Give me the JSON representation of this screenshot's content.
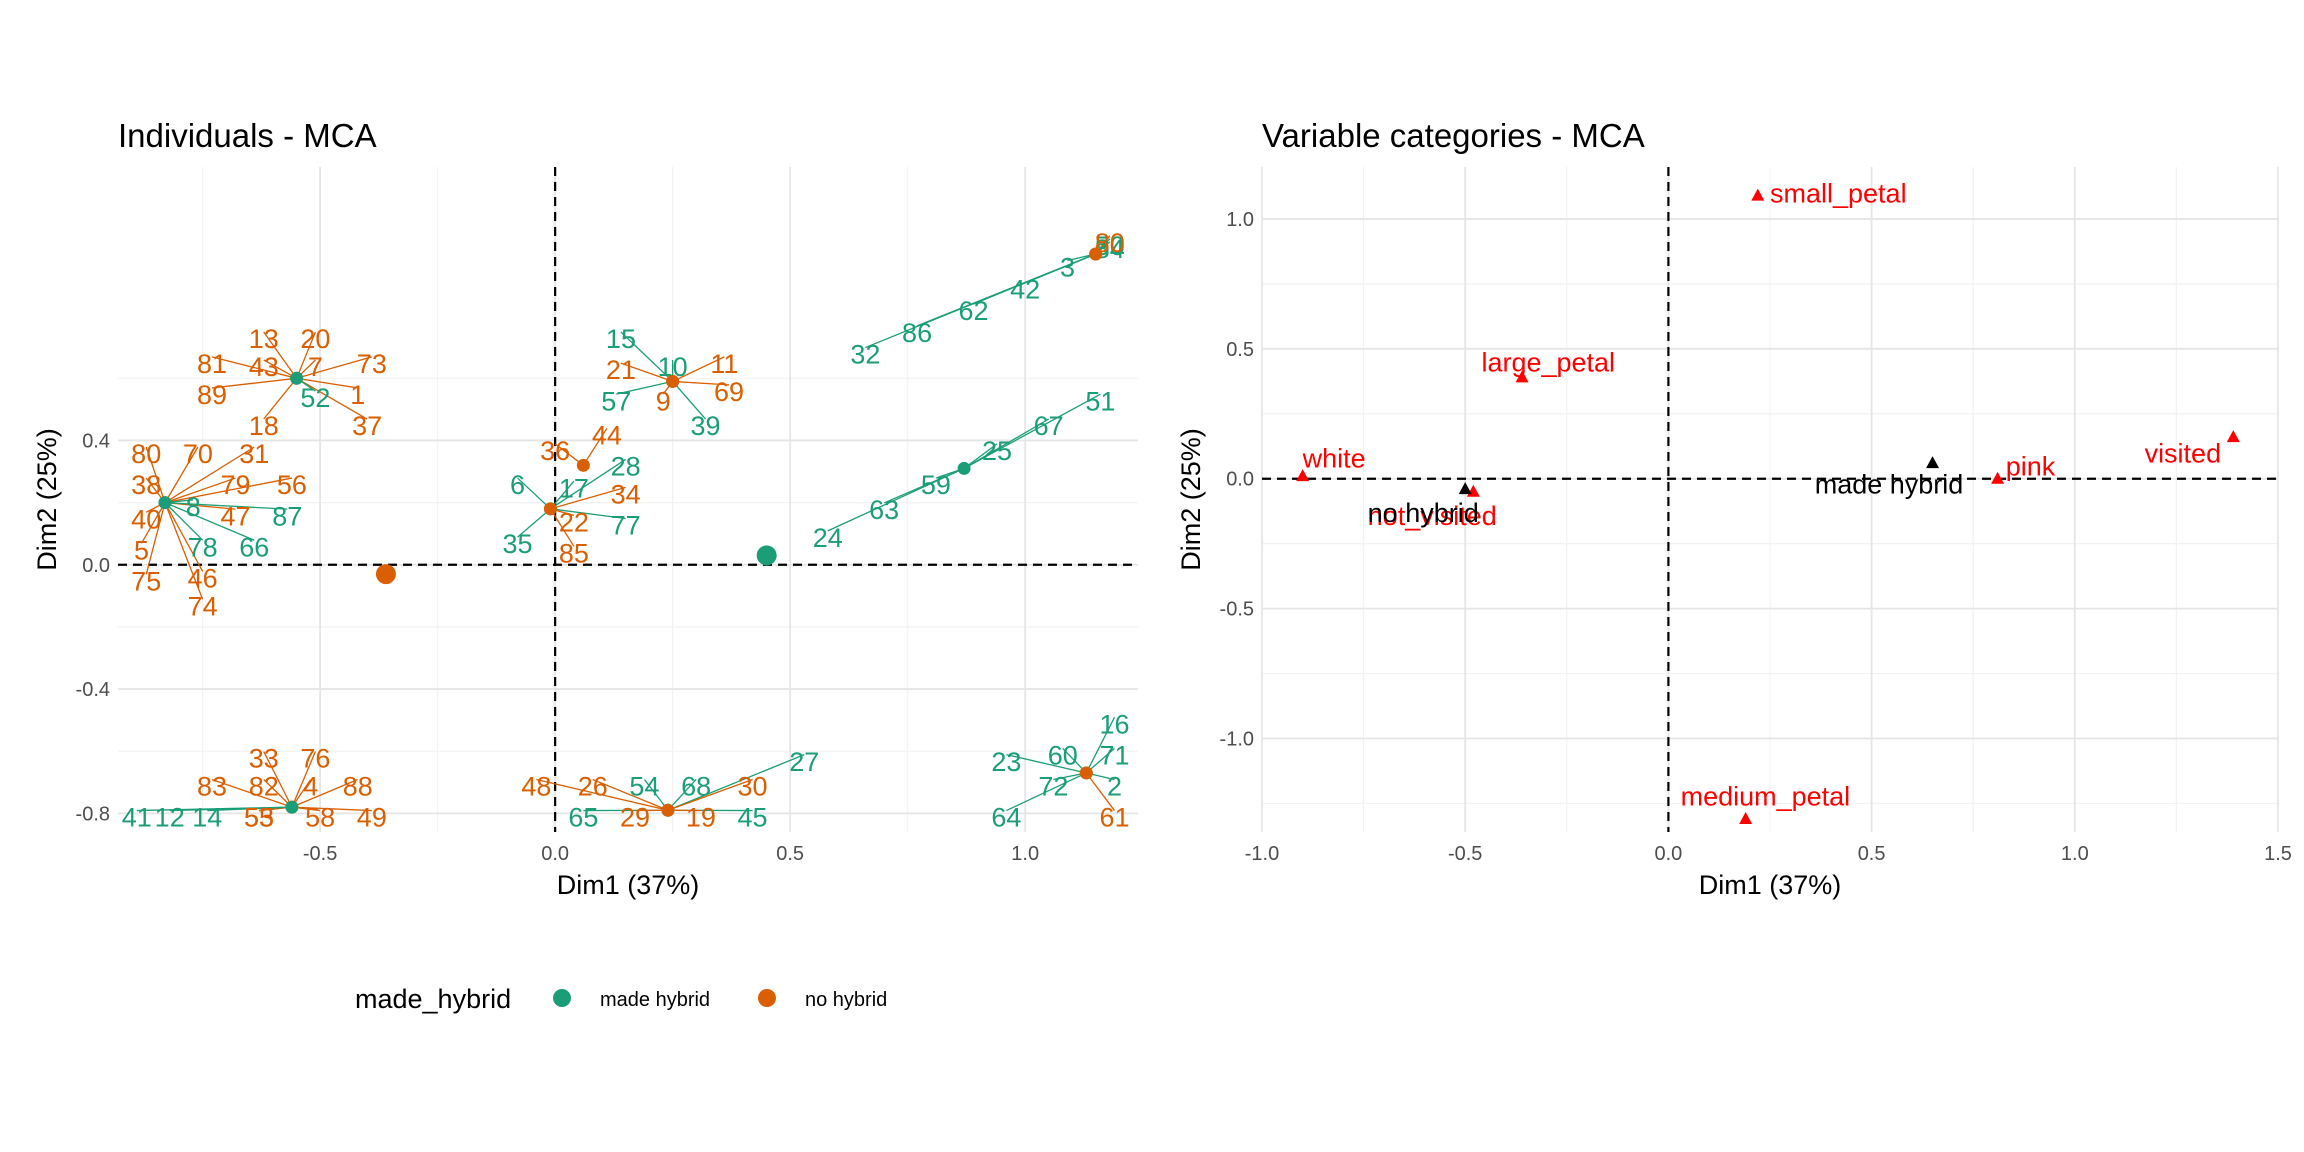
{
  "colors": {
    "made_hybrid": "#1b9e77",
    "no_hybrid": "#d95f02",
    "active": "#ff0000",
    "supp": "#000000",
    "grid_major": "#e5e5e5",
    "grid_minor": "#f2f2f2"
  },
  "chart_data": [
    {
      "type": "scatter",
      "title": "Individuals - MCA",
      "xlabel": "Dim1 (37%)",
      "ylabel": "Dim2 (25%)",
      "xlim": [
        -0.93,
        1.24
      ],
      "ylim": [
        -0.86,
        1.28
      ],
      "xticks": [
        -0.5,
        0.0,
        0.5,
        1.0
      ],
      "xtick_labels": [
        "-0.5",
        "0.0",
        "0.5",
        "1.0"
      ],
      "yticks": [
        -0.8,
        -0.4,
        0.0,
        0.4
      ],
      "ytick_labels": [
        "-0.8",
        "-0.4",
        "0.0",
        "0.4"
      ],
      "legend": {
        "title": "made_hybrid",
        "position": "bottom",
        "entries": [
          "made hybrid",
          "no hybrid"
        ]
      },
      "clusters": [
        {
          "group": "no_hybrid",
          "x": -0.55,
          "y": 0.6,
          "labels": [
            {
              "t": "13",
              "x": -0.62,
              "y": 0.72
            },
            {
              "t": "20",
              "x": -0.51,
              "y": 0.72
            },
            {
              "t": "81",
              "x": -0.73,
              "y": 0.64
            },
            {
              "t": "43",
              "x": -0.62,
              "y": 0.63
            },
            {
              "t": "7",
              "x": -0.51,
              "y": 0.63
            },
            {
              "t": "73",
              "x": -0.39,
              "y": 0.64
            },
            {
              "t": "89",
              "x": -0.73,
              "y": 0.54
            },
            {
              "t": "1",
              "x": -0.42,
              "y": 0.54
            },
            {
              "t": "18",
              "x": -0.62,
              "y": 0.44
            },
            {
              "t": "37",
              "x": -0.4,
              "y": 0.44
            }
          ]
        },
        {
          "group": "made_hybrid",
          "x": -0.55,
          "y": 0.6,
          "labels": [
            {
              "t": "52",
              "x": -0.51,
              "y": 0.53
            }
          ]
        },
        {
          "group": "no_hybrid",
          "x": -0.83,
          "y": 0.2,
          "labels": [
            {
              "t": "80",
              "x": -0.87,
              "y": 0.35
            },
            {
              "t": "70",
              "x": -0.76,
              "y": 0.35
            },
            {
              "t": "31",
              "x": -0.64,
              "y": 0.35
            },
            {
              "t": "38",
              "x": -0.87,
              "y": 0.25
            },
            {
              "t": "79",
              "x": -0.68,
              "y": 0.25
            },
            {
              "t": "56",
              "x": -0.56,
              "y": 0.25
            },
            {
              "t": "40",
              "x": -0.87,
              "y": 0.14
            },
            {
              "t": "47",
              "x": -0.68,
              "y": 0.15
            },
            {
              "t": "5",
              "x": -0.88,
              "y": 0.04
            },
            {
              "t": "75",
              "x": -0.87,
              "y": -0.06
            },
            {
              "t": "46",
              "x": -0.75,
              "y": -0.05
            },
            {
              "t": "74",
              "x": -0.75,
              "y": -0.14
            }
          ]
        },
        {
          "group": "made_hybrid",
          "x": -0.83,
          "y": 0.2,
          "labels": [
            {
              "t": "8",
              "x": -0.77,
              "y": 0.18
            },
            {
              "t": "87",
              "x": -0.57,
              "y": 0.15
            },
            {
              "t": "78",
              "x": -0.75,
              "y": 0.05
            },
            {
              "t": "66",
              "x": -0.64,
              "y": 0.05
            }
          ]
        },
        {
          "group": "made_hybrid",
          "x": 0.25,
          "y": 0.59,
          "labels": [
            {
              "t": "15",
              "x": 0.14,
              "y": 0.72
            },
            {
              "t": "10",
              "x": 0.25,
              "y": 0.63
            },
            {
              "t": "57",
              "x": 0.13,
              "y": 0.52
            },
            {
              "t": "39",
              "x": 0.32,
              "y": 0.44
            }
          ]
        },
        {
          "group": "no_hybrid",
          "x": 0.25,
          "y": 0.59,
          "labels": [
            {
              "t": "21",
              "x": 0.14,
              "y": 0.62
            },
            {
              "t": "11",
              "x": 0.36,
              "y": 0.64
            },
            {
              "t": "9",
              "x": 0.23,
              "y": 0.52
            },
            {
              "t": "69",
              "x": 0.37,
              "y": 0.55
            }
          ]
        },
        {
          "group": "no_hybrid",
          "x": 0.06,
          "y": 0.32,
          "labels": [
            {
              "t": "44",
              "x": 0.11,
              "y": 0.41
            },
            {
              "t": "36",
              "x": 0.0,
              "y": 0.36
            }
          ]
        },
        {
          "group": "made_hybrid",
          "x": -0.01,
          "y": 0.18,
          "labels": [
            {
              "t": "28",
              "x": 0.15,
              "y": 0.31
            },
            {
              "t": "6",
              "x": -0.08,
              "y": 0.25
            },
            {
              "t": "17",
              "x": 0.04,
              "y": 0.24
            },
            {
              "t": "77",
              "x": 0.15,
              "y": 0.12
            },
            {
              "t": "35",
              "x": -0.08,
              "y": 0.06
            }
          ]
        },
        {
          "group": "no_hybrid",
          "x": -0.01,
          "y": 0.18,
          "labels": [
            {
              "t": "34",
              "x": 0.15,
              "y": 0.22
            },
            {
              "t": "22",
              "x": 0.04,
              "y": 0.13
            },
            {
              "t": "85",
              "x": 0.04,
              "y": 0.03
            }
          ]
        },
        {
          "group": "made_hybrid",
          "x": 1.15,
          "y": 1.0,
          "labels": [
            {
              "t": "50",
              "x": 1.18,
              "y": 1.02
            },
            {
              "t": "84",
              "x": 1.18,
              "y": 1.01
            },
            {
              "t": "3",
              "x": 1.09,
              "y": 0.95
            },
            {
              "t": "42",
              "x": 1.0,
              "y": 0.88
            },
            {
              "t": "62",
              "x": 0.89,
              "y": 0.81
            },
            {
              "t": "86",
              "x": 0.77,
              "y": 0.74
            },
            {
              "t": "32",
              "x": 0.66,
              "y": 0.67
            }
          ]
        },
        {
          "group": "no_hybrid",
          "x": 1.15,
          "y": 1.0,
          "labels": [
            {
              "t": "80",
              "x": 1.18,
              "y": 1.03
            }
          ]
        },
        {
          "group": "made_hybrid",
          "x": 0.87,
          "y": 0.31,
          "labels": [
            {
              "t": "51",
              "x": 1.16,
              "y": 0.52
            },
            {
              "t": "67",
              "x": 1.05,
              "y": 0.44
            },
            {
              "t": "25",
              "x": 0.94,
              "y": 0.36
            },
            {
              "t": "59",
              "x": 0.81,
              "y": 0.25
            },
            {
              "t": "63",
              "x": 0.7,
              "y": 0.17
            },
            {
              "t": "24",
              "x": 0.58,
              "y": 0.08
            }
          ]
        },
        {
          "group": "no_hybrid",
          "x": -0.56,
          "y": -0.78,
          "labels": [
            {
              "t": "33",
              "x": -0.62,
              "y": -0.63
            },
            {
              "t": "76",
              "x": -0.51,
              "y": -0.63
            },
            {
              "t": "83",
              "x": -0.73,
              "y": -0.72
            },
            {
              "t": "82",
              "x": -0.62,
              "y": -0.72
            },
            {
              "t": "4",
              "x": -0.52,
              "y": -0.72
            },
            {
              "t": "88",
              "x": -0.42,
              "y": -0.72
            },
            {
              "t": "53",
              "x": -0.63,
              "y": -0.82
            },
            {
              "t": "55",
              "x": -0.63,
              "y": -0.82
            },
            {
              "t": "58",
              "x": -0.5,
              "y": -0.82
            },
            {
              "t": "49",
              "x": -0.39,
              "y": -0.82
            }
          ]
        },
        {
          "group": "made_hybrid",
          "x": -0.56,
          "y": -0.78,
          "labels": [
            {
              "t": "41",
              "x": -0.89,
              "y": -0.82
            },
            {
              "t": "12",
              "x": -0.82,
              "y": -0.82
            },
            {
              "t": "14",
              "x": -0.74,
              "y": -0.82
            }
          ]
        },
        {
          "group": "made_hybrid",
          "x": 0.24,
          "y": -0.79,
          "labels": [
            {
              "t": "27",
              "x": 0.53,
              "y": -0.64
            },
            {
              "t": "54",
              "x": 0.19,
              "y": -0.72
            },
            {
              "t": "68",
              "x": 0.3,
              "y": -0.72
            },
            {
              "t": "65",
              "x": 0.06,
              "y": -0.82
            },
            {
              "t": "45",
              "x": 0.42,
              "y": -0.82
            }
          ]
        },
        {
          "group": "no_hybrid",
          "x": 0.24,
          "y": -0.79,
          "labels": [
            {
              "t": "48",
              "x": -0.04,
              "y": -0.72
            },
            {
              "t": "26",
              "x": 0.08,
              "y": -0.72
            },
            {
              "t": "30",
              "x": 0.42,
              "y": -0.72
            },
            {
              "t": "29",
              "x": 0.17,
              "y": -0.82
            },
            {
              "t": "19",
              "x": 0.31,
              "y": -0.82
            }
          ]
        },
        {
          "group": "made_hybrid",
          "x": 1.13,
          "y": -0.67,
          "labels": [
            {
              "t": "16",
              "x": 1.19,
              "y": -0.52
            },
            {
              "t": "60",
              "x": 1.08,
              "y": -0.62
            },
            {
              "t": "71",
              "x": 1.19,
              "y": -0.62
            },
            {
              "t": "23",
              "x": 0.96,
              "y": -0.64
            },
            {
              "t": "72",
              "x": 1.06,
              "y": -0.72
            },
            {
              "t": "2",
              "x": 1.19,
              "y": -0.72
            },
            {
              "t": "64",
              "x": 0.96,
              "y": -0.82
            }
          ]
        },
        {
          "group": "no_hybrid",
          "x": 1.13,
          "y": -0.67,
          "labels": [
            {
              "t": "61",
              "x": 1.19,
              "y": -0.82
            }
          ]
        }
      ],
      "centroids": [
        {
          "group": "no_hybrid",
          "x": -0.36,
          "y": -0.03
        },
        {
          "group": "made_hybrid",
          "x": 0.45,
          "y": 0.03
        }
      ]
    },
    {
      "type": "scatter",
      "title": "Variable categories - MCA",
      "xlabel": "Dim1 (37%)",
      "ylabel": "Dim2 (25%)",
      "xlim": [
        -1.0,
        1.5
      ],
      "ylim": [
        -1.36,
        1.2
      ],
      "xticks": [
        -1.0,
        -0.5,
        0.0,
        0.5,
        1.0,
        1.5
      ],
      "xtick_labels": [
        "-1.0",
        "-0.5",
        "0.0",
        "0.5",
        "1.0",
        "1.5"
      ],
      "yticks": [
        -1.0,
        -0.5,
        0.0,
        0.5,
        1.0
      ],
      "ytick_labels": [
        "-1.0",
        "-0.5",
        "0.0",
        "0.5",
        "1.0"
      ],
      "points": [
        {
          "label": "small_petal",
          "x": 0.22,
          "y": 1.09,
          "kind": "active",
          "lx": 0.25,
          "ly": 1.09,
          "anchor": "start"
        },
        {
          "label": "large_petal",
          "x": -0.36,
          "y": 0.39,
          "kind": "active",
          "lx": -0.46,
          "ly": 0.44,
          "anchor": "start"
        },
        {
          "label": "white",
          "x": -0.9,
          "y": 0.01,
          "kind": "active",
          "lx": -0.9,
          "ly": 0.07,
          "anchor": "start"
        },
        {
          "label": "not_visited",
          "x": -0.48,
          "y": -0.05,
          "kind": "active",
          "lx": -0.74,
          "ly": -0.15,
          "anchor": "start"
        },
        {
          "label": "pink",
          "x": 0.81,
          "y": 0.0,
          "kind": "active",
          "lx": 0.83,
          "ly": 0.04,
          "anchor": "start"
        },
        {
          "label": "visited",
          "x": 1.39,
          "y": 0.16,
          "kind": "active",
          "lx": 1.36,
          "ly": 0.09,
          "anchor": "end"
        },
        {
          "label": "medium_petal",
          "x": 0.19,
          "y": -1.31,
          "kind": "active",
          "lx": 0.03,
          "ly": -1.23,
          "anchor": "start"
        },
        {
          "label": "no hybrid",
          "x": -0.5,
          "y": -0.04,
          "kind": "supp",
          "lx": -0.74,
          "ly": -0.14,
          "anchor": "start"
        },
        {
          "label": "made hybrid",
          "x": 0.65,
          "y": 0.06,
          "kind": "supp",
          "lx": 0.36,
          "ly": -0.03,
          "anchor": "start"
        }
      ]
    }
  ]
}
